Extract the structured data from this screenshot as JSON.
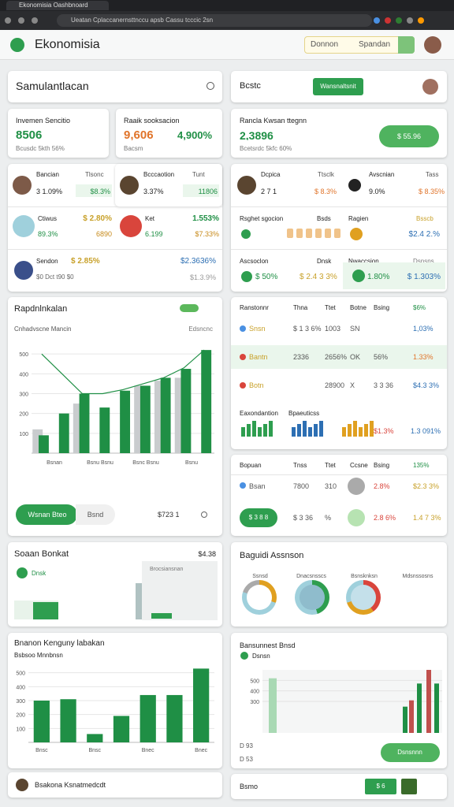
{
  "browser": {
    "tab": "Ekonomisia Oashbnoard",
    "url": "Ueatan Cplaccanernsttnccu apsb Cassu tcccic 2sn"
  },
  "header": {
    "brand": "Ekonomisia",
    "search": "Donnon",
    "search_hint": "Spandan"
  },
  "summary": {
    "title": "Samulantlacan"
  },
  "top_right": {
    "title": "Bcstc",
    "button": "Wansnaltsnit"
  },
  "stats": [
    {
      "label": "Invemen Sencitio",
      "value": "8506",
      "note": "Bcusdc 5kth 56%"
    },
    {
      "label": "Raaik sooksacion",
      "value": "9,606",
      "change": "4,900%",
      "note": "Bacsm"
    }
  ],
  "balance": {
    "label": "Rancla Kwsan ttegnn",
    "value": "2,3896",
    "note": "Bcetsrdc 5kfc 60%",
    "button": "$ 55.96"
  },
  "left_people": [
    {
      "name": "Bancian",
      "role": "Tlsonc",
      "pct": "3 1.09%",
      "amount": "$8.3%"
    },
    {
      "name": "Bcccaotion",
      "role": "Tunt",
      "pct": "3.37%",
      "amount": "11806"
    }
  ],
  "left_assets": [
    {
      "name": "Ctiwus",
      "value": "$ 2.80%",
      "pct": "89.3%",
      "sub": "6890"
    },
    {
      "name": "Ket",
      "value": "1.553%",
      "pct": "6.199",
      "sub": "$7.33%"
    },
    {
      "name": "Sendon",
      "value": "$ 2.85%",
      "pct": "$0 Dct t90 $0",
      "sub": "$2.3636%",
      "sub2": "$1.3.9%"
    }
  ],
  "right_people": [
    {
      "name": "Dcpica",
      "role": "Ttsclk",
      "pct": "2 7 1",
      "amount": "$ 8.3%"
    },
    {
      "name": "Avscnian",
      "role": "Tass",
      "pct": "9.0%",
      "amount": "$ 8.35%"
    }
  ],
  "right_rows": [
    {
      "name": "Rsghet sgocion",
      "col": "Bsds",
      "name2": "Ragien",
      "col2": "Bsscb",
      "amount": "$2.4 2.%"
    },
    {
      "name": "Ascsoclon",
      "col": "Dnsk",
      "name2": "Nwaccsion",
      "col2": "Dsnsns",
      "pct": "$ 50%",
      "amount": "$ 2.4 3 3%",
      "pct2": "1.80%",
      "amount2": "$ 1.303%"
    }
  ],
  "trend_chart": {
    "title": "Rapdnlnkalan",
    "subtitle": "Cnhadvscne Mancin",
    "corner": "Edsncnc",
    "ylim": [
      0,
      600
    ],
    "yticks": [
      100,
      200,
      300,
      400,
      500
    ],
    "categories": [
      "Bsnan",
      "Bsnu Bsnu",
      "Bsnc Bsnu",
      "Bsnu"
    ],
    "series": [
      {
        "color": "#c9ccce",
        "values": [
          120,
          null,
          250,
          null,
          null,
          340,
          365,
          380,
          null
        ]
      },
      {
        "color": "#1f8f45",
        "values": [
          90,
          200,
          300,
          230,
          315,
          340,
          380,
          425,
          520
        ]
      }
    ],
    "line": {
      "color": "#1f8f45",
      "values": [
        500,
        400,
        300,
        300,
        320,
        350,
        380,
        430,
        520
      ]
    },
    "button": "Wsnan Bteo",
    "button2": "Bsnd",
    "footer": "$723 1"
  },
  "small_card": {
    "title": "Soaan Bonkat",
    "note": "Dnsk",
    "label": "Brocsiansnan",
    "value": "$4.38"
  },
  "bar_chart": {
    "title": "Bnanon Kenguny labakan",
    "subtitle": "Bsbsoo Mnnbnsn",
    "ylim": [
      0,
      600
    ],
    "yticks": [
      100,
      200,
      300,
      400,
      500
    ],
    "categories": [
      "Bnsc",
      null,
      "Bnsc",
      null,
      "Bnec",
      null,
      "Bnec"
    ],
    "color": "#1f8f45",
    "values": [
      300,
      310,
      60,
      190,
      340,
      340,
      530
    ]
  },
  "table_one": {
    "header": [
      "Ranstonnr",
      "Thna",
      "Ttet",
      "Botne",
      "Bsing",
      "$6%"
    ],
    "rows": [
      [
        "Snsn",
        "$ 1 3 6%",
        "1003",
        "SN",
        "",
        "1,03%"
      ],
      [
        "Bantn",
        "2336",
        "2656%",
        "OK",
        "56%",
        "1.33%"
      ],
      [
        "Botn",
        "",
        "28900",
        "X",
        "3 3 36",
        "$4.3 3%"
      ]
    ],
    "footer": [
      "Eaxondantion",
      "Bpaeuticss",
      "$1.3%",
      "1.3 091%"
    ]
  },
  "table_two": {
    "header": [
      "Bopuan",
      "Tnss",
      "Ttet",
      "Ccsne",
      "Bsing",
      "135%"
    ],
    "rows": [
      [
        "Bsan",
        "7800",
        "310",
        "",
        "2.8%",
        "$2.3 3%"
      ],
      [
        "",
        "$ 3 36",
        "%",
        "",
        "2.8 6%",
        "1.4 7 3%"
      ]
    ],
    "button": "$ 3 8 8"
  },
  "donuts": {
    "title": "Baguidi Assnson",
    "labels": [
      "Ssnsd",
      "Dnacsnsscs",
      "Bsnsknksn",
      "Mdsnssosns"
    ]
  },
  "right_chart": {
    "title": "Bansunnest Bnsd",
    "subtitle": "Dsnsn",
    "ylim": [
      0,
      600
    ],
    "yticks": [
      300,
      400,
      500
    ],
    "colors": [
      "#a9d9b4",
      "#1f8f45",
      "#c0504d"
    ],
    "values": [
      520,
      250,
      310,
      470,
      600,
      470
    ],
    "notes": [
      "D 93",
      "D 53"
    ],
    "button": "Dsnsnnn"
  },
  "footer_left": {
    "title": "Bsakona Ksnatmedcdt"
  },
  "footer_right": {
    "title": "Bsmo",
    "button": "$ 6"
  }
}
